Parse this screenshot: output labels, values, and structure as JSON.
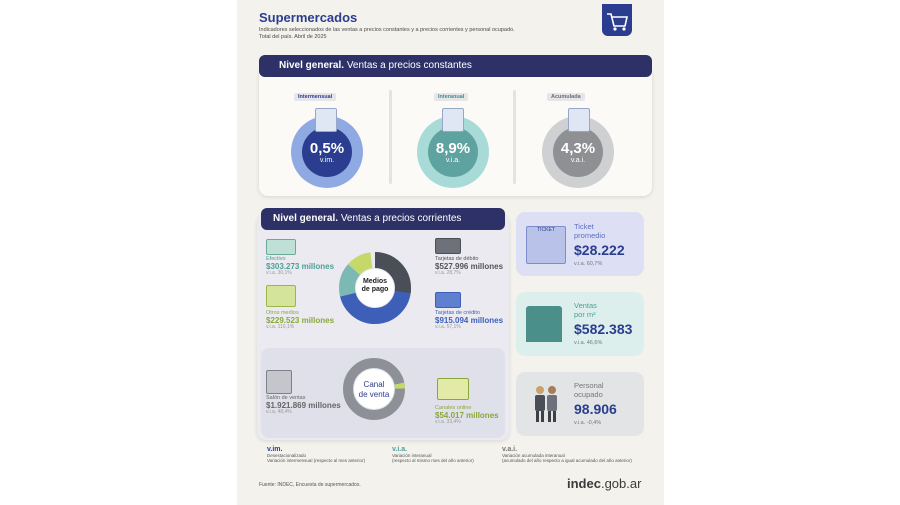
{
  "header": {
    "title": "Supermercados",
    "subtitle_line1": "Indicadores seleccionados de las ventas a precios constantes y a precios corrientes y personal ocupado.",
    "subtitle_line2": "Total del país. Abril de 2025"
  },
  "constantes": {
    "band_title_a": "Nivel general.",
    "band_title_b": "Ventas a precios constantes",
    "items": [
      {
        "label": "Intermensual",
        "value": "0,5%",
        "unit": "v.im.",
        "color": "#2b3d8f",
        "ring": "#5b84d8"
      },
      {
        "label": "Interanual",
        "value": "8,9%",
        "unit": "v.i.a.",
        "color": "#5fa3a0",
        "ring": "#9fd2cf"
      },
      {
        "label": "Acumulada",
        "value": "4,3%",
        "unit": "v.a.i.",
        "color": "#8e9093",
        "ring": "#c5c6c8"
      }
    ]
  },
  "corrientes": {
    "band_title_a": "Nivel general.",
    "band_title_b": "Ventas a precios corrientes",
    "medios": {
      "center_label_1": "Medios",
      "center_label_2": "de pago",
      "efectivo": {
        "label": "Efectivo",
        "value": "$303.273 millones",
        "via": "v.i.a. 30,1%"
      },
      "otros": {
        "label": "Otros medios",
        "value": "$229.523 millones",
        "via": "v.i.a. 110,1%"
      },
      "debito": {
        "label": "Tarjetas de débito",
        "value": "$527.996 millones",
        "via": "v.i.a. 28,7%"
      },
      "credito": {
        "label": "Tarjetas de crédito",
        "value": "$915.094 millones",
        "via": "v.i.a. 57,1%"
      }
    },
    "canal": {
      "center_label_1": "Canal",
      "center_label_2": "de venta",
      "salon": {
        "label": "Salón de ventas",
        "value": "$1.921.869 millones",
        "via": "v.i.a. 48,4%"
      },
      "online": {
        "label": "Canales online",
        "value": "$54.017 millones",
        "via": "v.i.a. 33,4%"
      }
    }
  },
  "side": {
    "ticket": {
      "label_1": "Ticket",
      "label_2": "promedio",
      "value": "$28.222",
      "via": "v.i.a. 60,7%",
      "icon_text": "TICKET"
    },
    "ventas": {
      "label_1": "Ventas",
      "label_2": "por m²",
      "value": "$582.383",
      "via": "v.i.a. 46,6%"
    },
    "personal": {
      "label_1": "Personal",
      "label_2": "ocupado",
      "value": "98.906",
      "via": "v.i.a. -0,4%"
    }
  },
  "legend": [
    {
      "abbr": "v.im.",
      "line1": "Desestacionalizado",
      "line2": "Variación intermensual (respecto al mes anterior)"
    },
    {
      "abbr": "v.i.a.",
      "line1": "Variación interanual",
      "line2": "(respecto al mismo mes del año anterior)"
    },
    {
      "abbr": "v.a.i.",
      "line1": "Variación acumulada interanual",
      "line2": "(acumulado del año respecto a igual acumulado del año anterior)"
    }
  ],
  "footer": {
    "source": "Fuente: INDEC, Encuesta de supermercados.",
    "logo": "indec",
    "logo_suffix": ".gob.ar"
  }
}
